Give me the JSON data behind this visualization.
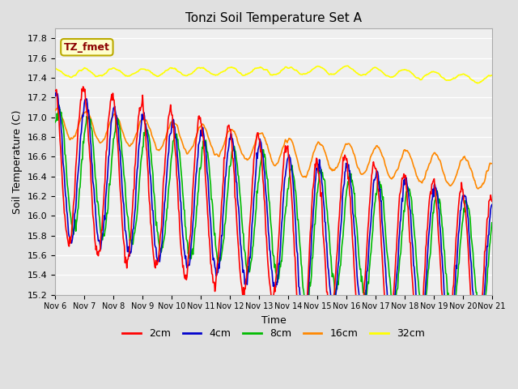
{
  "title": "Tonzi Soil Temperature Set A",
  "xlabel": "Time",
  "ylabel": "Soil Temperature (C)",
  "ylim": [
    15.2,
    17.9
  ],
  "xlim": [
    0,
    360
  ],
  "fig_bg": "#e0e0e0",
  "plot_bg": "#efefef",
  "annotation_text": "TZ_fmet",
  "annotation_color": "#8b0000",
  "annotation_bg": "#ffffcc",
  "annotation_border": "#bbaa00",
  "legend_entries": [
    "2cm",
    "4cm",
    "8cm",
    "16cm",
    "32cm"
  ],
  "line_colors": [
    "#ff0000",
    "#0000cc",
    "#00bb00",
    "#ff8800",
    "#ffff00"
  ],
  "xtick_labels": [
    "Nov 6",
    "Nov 7",
    "Nov 8",
    "Nov 9",
    "Nov 10",
    "Nov 11",
    "Nov 12",
    "Nov 13",
    "Nov 14",
    "Nov 15",
    "Nov 16",
    "Nov 17",
    "Nov 18",
    "Nov 19",
    "Nov 20",
    "Nov 21"
  ],
  "ytick_values": [
    15.2,
    15.4,
    15.6,
    15.8,
    16.0,
    16.2,
    16.4,
    16.6,
    16.8,
    17.0,
    17.2,
    17.4,
    17.6,
    17.8
  ],
  "num_points": 720,
  "period_hours": 24,
  "total_hours": 360
}
